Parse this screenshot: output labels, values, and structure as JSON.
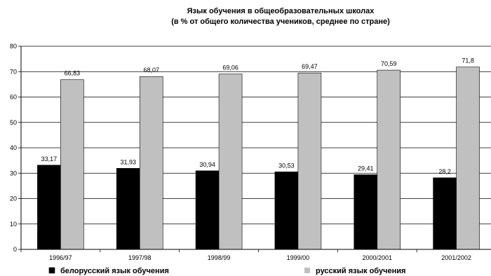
{
  "chart_data": {
    "type": "bar",
    "title": "Язык обучения в общеобразовательных школах",
    "subtitle": "(в % от общего количества учеников, среднее по стране)",
    "categories": [
      "1996/97",
      "1997/98",
      "1998/99",
      "1999/00",
      "2000/2001",
      "2001/2002"
    ],
    "series": [
      {
        "name": "белорусский язык обучения",
        "color": "#000000",
        "values": [
          33.17,
          31.93,
          30.94,
          30.53,
          29.41,
          28.2
        ],
        "labels": [
          "33,17",
          "31,93",
          "30,94",
          "30,53",
          "29,41",
          "28,2"
        ]
      },
      {
        "name": "русский язык обучения",
        "color": "#c0c0c0",
        "values": [
          66.83,
          68.07,
          69.06,
          69.47,
          70.59,
          71.8
        ],
        "labels": [
          "66,83",
          "68,07",
          "69,06",
          "69,47",
          "70,59",
          "71,8"
        ]
      }
    ],
    "ylim": [
      0,
      80
    ],
    "yticks": [
      0,
      10,
      20,
      30,
      40,
      50,
      60,
      70,
      80
    ],
    "grid": true,
    "legend": "bottom"
  }
}
